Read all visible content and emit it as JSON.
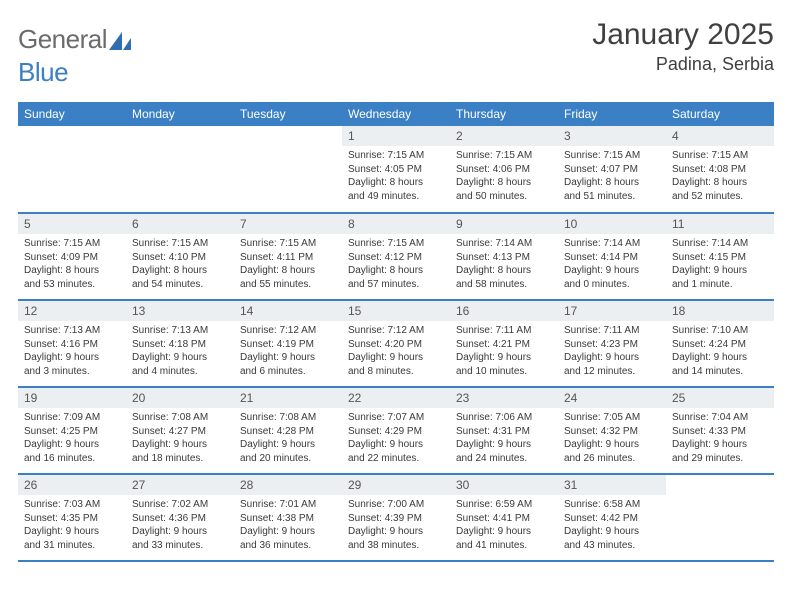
{
  "brand": {
    "general": "General",
    "blue": "Blue"
  },
  "title": "January 2025",
  "location": "Padina, Serbia",
  "colors": {
    "accent": "#3b7fc4",
    "header_row_bg": "#3b7fc4",
    "header_row_text": "#ffffff",
    "daynum_bg": "#eceff1",
    "body_text": "#3a3a3a",
    "logo_gray": "#6b6b6b"
  },
  "weekdays": [
    "Sunday",
    "Monday",
    "Tuesday",
    "Wednesday",
    "Thursday",
    "Friday",
    "Saturday"
  ],
  "weeks": [
    [
      {
        "n": "",
        "l1": "",
        "l2": "",
        "l3": "",
        "l4": ""
      },
      {
        "n": "",
        "l1": "",
        "l2": "",
        "l3": "",
        "l4": ""
      },
      {
        "n": "",
        "l1": "",
        "l2": "",
        "l3": "",
        "l4": ""
      },
      {
        "n": "1",
        "l1": "Sunrise: 7:15 AM",
        "l2": "Sunset: 4:05 PM",
        "l3": "Daylight: 8 hours",
        "l4": "and 49 minutes."
      },
      {
        "n": "2",
        "l1": "Sunrise: 7:15 AM",
        "l2": "Sunset: 4:06 PM",
        "l3": "Daylight: 8 hours",
        "l4": "and 50 minutes."
      },
      {
        "n": "3",
        "l1": "Sunrise: 7:15 AM",
        "l2": "Sunset: 4:07 PM",
        "l3": "Daylight: 8 hours",
        "l4": "and 51 minutes."
      },
      {
        "n": "4",
        "l1": "Sunrise: 7:15 AM",
        "l2": "Sunset: 4:08 PM",
        "l3": "Daylight: 8 hours",
        "l4": "and 52 minutes."
      }
    ],
    [
      {
        "n": "5",
        "l1": "Sunrise: 7:15 AM",
        "l2": "Sunset: 4:09 PM",
        "l3": "Daylight: 8 hours",
        "l4": "and 53 minutes."
      },
      {
        "n": "6",
        "l1": "Sunrise: 7:15 AM",
        "l2": "Sunset: 4:10 PM",
        "l3": "Daylight: 8 hours",
        "l4": "and 54 minutes."
      },
      {
        "n": "7",
        "l1": "Sunrise: 7:15 AM",
        "l2": "Sunset: 4:11 PM",
        "l3": "Daylight: 8 hours",
        "l4": "and 55 minutes."
      },
      {
        "n": "8",
        "l1": "Sunrise: 7:15 AM",
        "l2": "Sunset: 4:12 PM",
        "l3": "Daylight: 8 hours",
        "l4": "and 57 minutes."
      },
      {
        "n": "9",
        "l1": "Sunrise: 7:14 AM",
        "l2": "Sunset: 4:13 PM",
        "l3": "Daylight: 8 hours",
        "l4": "and 58 minutes."
      },
      {
        "n": "10",
        "l1": "Sunrise: 7:14 AM",
        "l2": "Sunset: 4:14 PM",
        "l3": "Daylight: 9 hours",
        "l4": "and 0 minutes."
      },
      {
        "n": "11",
        "l1": "Sunrise: 7:14 AM",
        "l2": "Sunset: 4:15 PM",
        "l3": "Daylight: 9 hours",
        "l4": "and 1 minute."
      }
    ],
    [
      {
        "n": "12",
        "l1": "Sunrise: 7:13 AM",
        "l2": "Sunset: 4:16 PM",
        "l3": "Daylight: 9 hours",
        "l4": "and 3 minutes."
      },
      {
        "n": "13",
        "l1": "Sunrise: 7:13 AM",
        "l2": "Sunset: 4:18 PM",
        "l3": "Daylight: 9 hours",
        "l4": "and 4 minutes."
      },
      {
        "n": "14",
        "l1": "Sunrise: 7:12 AM",
        "l2": "Sunset: 4:19 PM",
        "l3": "Daylight: 9 hours",
        "l4": "and 6 minutes."
      },
      {
        "n": "15",
        "l1": "Sunrise: 7:12 AM",
        "l2": "Sunset: 4:20 PM",
        "l3": "Daylight: 9 hours",
        "l4": "and 8 minutes."
      },
      {
        "n": "16",
        "l1": "Sunrise: 7:11 AM",
        "l2": "Sunset: 4:21 PM",
        "l3": "Daylight: 9 hours",
        "l4": "and 10 minutes."
      },
      {
        "n": "17",
        "l1": "Sunrise: 7:11 AM",
        "l2": "Sunset: 4:23 PM",
        "l3": "Daylight: 9 hours",
        "l4": "and 12 minutes."
      },
      {
        "n": "18",
        "l1": "Sunrise: 7:10 AM",
        "l2": "Sunset: 4:24 PM",
        "l3": "Daylight: 9 hours",
        "l4": "and 14 minutes."
      }
    ],
    [
      {
        "n": "19",
        "l1": "Sunrise: 7:09 AM",
        "l2": "Sunset: 4:25 PM",
        "l3": "Daylight: 9 hours",
        "l4": "and 16 minutes."
      },
      {
        "n": "20",
        "l1": "Sunrise: 7:08 AM",
        "l2": "Sunset: 4:27 PM",
        "l3": "Daylight: 9 hours",
        "l4": "and 18 minutes."
      },
      {
        "n": "21",
        "l1": "Sunrise: 7:08 AM",
        "l2": "Sunset: 4:28 PM",
        "l3": "Daylight: 9 hours",
        "l4": "and 20 minutes."
      },
      {
        "n": "22",
        "l1": "Sunrise: 7:07 AM",
        "l2": "Sunset: 4:29 PM",
        "l3": "Daylight: 9 hours",
        "l4": "and 22 minutes."
      },
      {
        "n": "23",
        "l1": "Sunrise: 7:06 AM",
        "l2": "Sunset: 4:31 PM",
        "l3": "Daylight: 9 hours",
        "l4": "and 24 minutes."
      },
      {
        "n": "24",
        "l1": "Sunrise: 7:05 AM",
        "l2": "Sunset: 4:32 PM",
        "l3": "Daylight: 9 hours",
        "l4": "and 26 minutes."
      },
      {
        "n": "25",
        "l1": "Sunrise: 7:04 AM",
        "l2": "Sunset: 4:33 PM",
        "l3": "Daylight: 9 hours",
        "l4": "and 29 minutes."
      }
    ],
    [
      {
        "n": "26",
        "l1": "Sunrise: 7:03 AM",
        "l2": "Sunset: 4:35 PM",
        "l3": "Daylight: 9 hours",
        "l4": "and 31 minutes."
      },
      {
        "n": "27",
        "l1": "Sunrise: 7:02 AM",
        "l2": "Sunset: 4:36 PM",
        "l3": "Daylight: 9 hours",
        "l4": "and 33 minutes."
      },
      {
        "n": "28",
        "l1": "Sunrise: 7:01 AM",
        "l2": "Sunset: 4:38 PM",
        "l3": "Daylight: 9 hours",
        "l4": "and 36 minutes."
      },
      {
        "n": "29",
        "l1": "Sunrise: 7:00 AM",
        "l2": "Sunset: 4:39 PM",
        "l3": "Daylight: 9 hours",
        "l4": "and 38 minutes."
      },
      {
        "n": "30",
        "l1": "Sunrise: 6:59 AM",
        "l2": "Sunset: 4:41 PM",
        "l3": "Daylight: 9 hours",
        "l4": "and 41 minutes."
      },
      {
        "n": "31",
        "l1": "Sunrise: 6:58 AM",
        "l2": "Sunset: 4:42 PM",
        "l3": "Daylight: 9 hours",
        "l4": "and 43 minutes."
      },
      {
        "n": "",
        "l1": "",
        "l2": "",
        "l3": "",
        "l4": ""
      }
    ]
  ]
}
